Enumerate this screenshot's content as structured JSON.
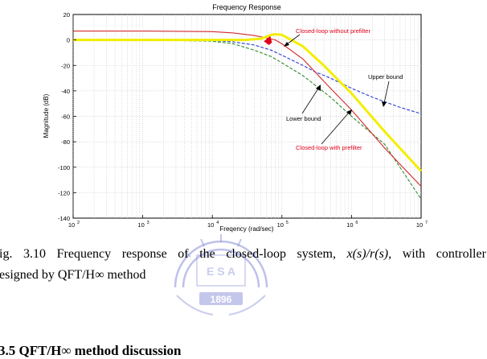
{
  "chart_data": {
    "type": "line",
    "title": "Frequency Response",
    "xlabel": "Freqency (rad/sec)",
    "ylabel": "Magnitude (dB)",
    "xscale": "log",
    "xlim": [
      100,
      10000000
    ],
    "ylim": [
      -140,
      20
    ],
    "grid": true,
    "x_tick_labels": [
      "10",
      "10",
      "10",
      "10",
      "10",
      "10"
    ],
    "x_tick_exponents": [
      "2",
      "3",
      "4",
      "5",
      "6",
      "7"
    ],
    "y_tick_labels": [
      "20",
      "0",
      "-20",
      "-40",
      "-60",
      "-80",
      "-100",
      "-120",
      "-140"
    ],
    "annotations": [
      {
        "text": "Closed-loop without prefilter",
        "color": "#e0001b"
      },
      {
        "text": "Upper bound",
        "color": "#000000"
      },
      {
        "text": "Lower bound",
        "color": "#000000"
      },
      {
        "text": "Closed-loop with prefilter",
        "color": "#e0001b"
      }
    ],
    "series": [
      {
        "color": "#2a3bd6",
        "style": "dashed",
        "x": [
          100,
          1000,
          10000,
          20000,
          40000,
          70000,
          100000,
          200000,
          300000,
          500000,
          1000000,
          2000000,
          5000000,
          10000000
        ],
        "y": [
          0,
          0,
          -0.5,
          -1.5,
          -4,
          -8,
          -12,
          -20,
          -25,
          -30,
          -38,
          -45,
          -53,
          -58
        ]
      },
      {
        "color": "#2e8b2e",
        "style": "dashed",
        "x": [
          100,
          1000,
          10000,
          20000,
          40000,
          70000,
          100000,
          200000,
          500000,
          1000000,
          3000000,
          10000000
        ],
        "y": [
          0,
          0,
          -1,
          -3,
          -8,
          -13,
          -18,
          -28,
          -45,
          -60,
          -82,
          -125
        ]
      },
      {
        "color": "#d42a2a",
        "style": "solid",
        "x": [
          100,
          1000,
          10000,
          20000,
          40000,
          55000,
          65000,
          80000,
          100000,
          200000,
          500000,
          1000000,
          3000000,
          10000000
        ],
        "y": [
          7,
          7,
          6.5,
          5.5,
          3.5,
          2,
          1,
          0,
          -3,
          -15,
          -38,
          -55,
          -85,
          -115
        ]
      },
      {
        "color": "#f3ee00",
        "style": "solid",
        "x": [
          100,
          1000,
          10000,
          30000,
          50000,
          60000,
          70000,
          80000,
          100000,
          200000,
          400000,
          1000000,
          3000000,
          10000000
        ],
        "y": [
          0,
          0,
          0,
          0,
          1,
          2.5,
          4,
          4.5,
          4,
          -5,
          -20,
          -42,
          -72,
          -103
        ]
      }
    ]
  },
  "caption": {
    "line1_words": [
      "ig.",
      "3.10",
      "Frequency",
      "response",
      "of",
      "the",
      "closed-loop",
      "system,",
      "x(s)/r(s),",
      "with",
      "controller"
    ],
    "line2": "esigned by QFT/H∞ method"
  },
  "section_heading": "3.5  QFT/H∞ method discussion",
  "watermark": {
    "text_top": "E S A",
    "year": "1896"
  }
}
